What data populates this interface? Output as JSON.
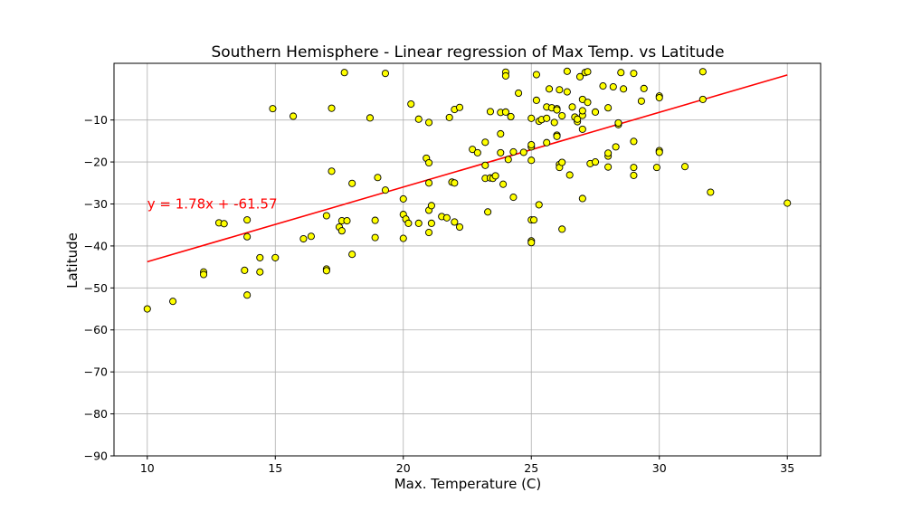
{
  "chart_data": {
    "type": "scatter",
    "title": "Southern Hemisphere - Linear regression of Max Temp. vs Latitude",
    "xlabel": "Max. Temperature (C)",
    "ylabel": "Latitude",
    "xlim": [
      8.7,
      36.3
    ],
    "ylim": [
      -90,
      3.5
    ],
    "xticks": [
      10,
      15,
      20,
      25,
      30,
      35
    ],
    "yticks": [
      -90,
      -80,
      -70,
      -60,
      -50,
      -40,
      -30,
      -20,
      -10
    ],
    "ytick_labels": [
      "−90",
      "−80",
      "−70",
      "−60",
      "−50",
      "−40",
      "−30",
      "−20",
      "−10"
    ],
    "grid": true,
    "point_color": "#ffff00",
    "point_edge_color": "#000000",
    "line_color": "#ff0000",
    "regression": {
      "slope": 1.78,
      "intercept": -61.57,
      "x_range": [
        10,
        35
      ]
    },
    "annotation": {
      "text": "y = 1.78x + -61.57",
      "x": 10,
      "y": -30,
      "color": "#ff0000"
    },
    "points": [
      [
        10,
        -55
      ],
      [
        11,
        -53.2
      ],
      [
        12.2,
        -46.2
      ],
      [
        12.2,
        -46.8
      ],
      [
        12.8,
        -34.5
      ],
      [
        13,
        -34.7
      ],
      [
        13.8,
        -45.8
      ],
      [
        13.9,
        -51.7
      ],
      [
        13.9,
        -33.8
      ],
      [
        13.9,
        -37.8
      ],
      [
        14.4,
        -42.8
      ],
      [
        14.4,
        -46.2
      ],
      [
        14.9,
        -7.3
      ],
      [
        15,
        -42.8
      ],
      [
        15.7,
        -9.1
      ],
      [
        16.1,
        -38.3
      ],
      [
        16.4,
        -37.7
      ],
      [
        17,
        -32.8
      ],
      [
        17,
        -45.5
      ],
      [
        17,
        -45.9
      ],
      [
        17.2,
        -7.2
      ],
      [
        17.2,
        -22.2
      ],
      [
        17.5,
        -35.5
      ],
      [
        17.6,
        -36.4
      ],
      [
        17.6,
        -34
      ],
      [
        17.7,
        1.3
      ],
      [
        17.8,
        -34
      ],
      [
        18,
        -25.1
      ],
      [
        18,
        -42
      ],
      [
        18.7,
        -9.5
      ],
      [
        18.9,
        -38
      ],
      [
        18.9,
        -33.9
      ],
      [
        19,
        -23.7
      ],
      [
        19.3,
        -26.7
      ],
      [
        19.3,
        1.1
      ],
      [
        20,
        -32.5
      ],
      [
        20,
        -38.2
      ],
      [
        20,
        -28.8
      ],
      [
        20.1,
        -33.6
      ],
      [
        20.2,
        -34.6
      ],
      [
        20.3,
        -6.2
      ],
      [
        20.6,
        -34.6
      ],
      [
        20.6,
        -9.8
      ],
      [
        20.9,
        -19.1
      ],
      [
        21,
        -25
      ],
      [
        21,
        -36.8
      ],
      [
        21,
        -20.2
      ],
      [
        21,
        -31.5
      ],
      [
        21,
        -10.6
      ],
      [
        21.1,
        -30.4
      ],
      [
        21.1,
        -34.6
      ],
      [
        21.5,
        -33
      ],
      [
        21.7,
        -33.3
      ],
      [
        21.8,
        -9.4
      ],
      [
        21.9,
        -24.8
      ],
      [
        22,
        -25
      ],
      [
        22,
        -7.5
      ],
      [
        22,
        -34.3
      ],
      [
        22.2,
        -7
      ],
      [
        22.2,
        -35.5
      ],
      [
        22.7,
        -17
      ],
      [
        22.9,
        -17.8
      ],
      [
        23.2,
        -15.3
      ],
      [
        23.2,
        -20.8
      ],
      [
        23.2,
        -23.9
      ],
      [
        23.3,
        -31.9
      ],
      [
        23.4,
        -8
      ],
      [
        23.4,
        -23.8
      ],
      [
        23.5,
        -23.9
      ],
      [
        23.6,
        -23.3
      ],
      [
        23.8,
        -8.2
      ],
      [
        23.8,
        -13.3
      ],
      [
        23.8,
        -17.8
      ],
      [
        23.9,
        -25.3
      ],
      [
        24,
        1.4
      ],
      [
        24,
        -8.1
      ],
      [
        24,
        0.5
      ],
      [
        24.1,
        -19.4
      ],
      [
        24.2,
        -9.2
      ],
      [
        24.3,
        -28.4
      ],
      [
        24.3,
        -17.6
      ],
      [
        24.5,
        -3.6
      ],
      [
        24.7,
        -17.7
      ],
      [
        25,
        -9.6
      ],
      [
        25,
        -16.4
      ],
      [
        25,
        -15.9
      ],
      [
        25,
        -19.6
      ],
      [
        25,
        -38.8
      ],
      [
        25,
        -39.2
      ],
      [
        25,
        -33.8
      ],
      [
        25.1,
        -33.8
      ],
      [
        25.2,
        -5.3
      ],
      [
        25.2,
        0.8
      ],
      [
        25.3,
        -30.2
      ],
      [
        25.3,
        -10.3
      ],
      [
        25.4,
        -9.9
      ],
      [
        25.6,
        -15.4
      ],
      [
        25.6,
        -6.9
      ],
      [
        25.6,
        -9.6
      ],
      [
        25.7,
        -2.6
      ],
      [
        25.8,
        -7.1
      ],
      [
        25.9,
        -10.6
      ],
      [
        26,
        -7.3
      ],
      [
        26,
        -7.6
      ],
      [
        26,
        -13.6
      ],
      [
        26,
        -13.9
      ],
      [
        26.1,
        -20.6
      ],
      [
        26.1,
        -21.3
      ],
      [
        26.1,
        -2.8
      ],
      [
        26.2,
        -9
      ],
      [
        26.2,
        -20.1
      ],
      [
        26.2,
        -36
      ],
      [
        26.4,
        -3.3
      ],
      [
        26.4,
        1.6
      ],
      [
        26.5,
        -23.1
      ],
      [
        26.6,
        -6.9
      ],
      [
        26.7,
        -9.3
      ],
      [
        26.8,
        -10.4
      ],
      [
        26.8,
        -9.8
      ],
      [
        26.9,
        0.3
      ],
      [
        27,
        -12.2
      ],
      [
        27,
        -8.9
      ],
      [
        27,
        -7.8
      ],
      [
        27,
        -5.1
      ],
      [
        27,
        -28.7
      ],
      [
        27.1,
        1.3
      ],
      [
        27.2,
        1.5
      ],
      [
        27.2,
        -5.8
      ],
      [
        27.3,
        -20.4
      ],
      [
        27.5,
        -20
      ],
      [
        27.5,
        -8.1
      ],
      [
        27.8,
        -1.9
      ],
      [
        28,
        -18.6
      ],
      [
        28,
        -21.2
      ],
      [
        28,
        -7.1
      ],
      [
        28,
        -17.9
      ],
      [
        28.2,
        -2.1
      ],
      [
        28.3,
        -16.4
      ],
      [
        28.4,
        -11.1
      ],
      [
        28.4,
        -10.7
      ],
      [
        28.5,
        1.3
      ],
      [
        28.6,
        -2.6
      ],
      [
        29,
        1.1
      ],
      [
        29,
        -15.1
      ],
      [
        29,
        -21.3
      ],
      [
        29,
        -23.2
      ],
      [
        29.3,
        -5.5
      ],
      [
        29.4,
        -2.5
      ],
      [
        29.9,
        -21.3
      ],
      [
        30,
        -4.3
      ],
      [
        30,
        -4.7
      ],
      [
        30,
        -17.3
      ],
      [
        30,
        -17.7
      ],
      [
        31,
        -21.1
      ],
      [
        31.7,
        1.5
      ],
      [
        31.7,
        -5.1
      ],
      [
        32,
        -27.2
      ],
      [
        35,
        -29.8
      ]
    ]
  }
}
